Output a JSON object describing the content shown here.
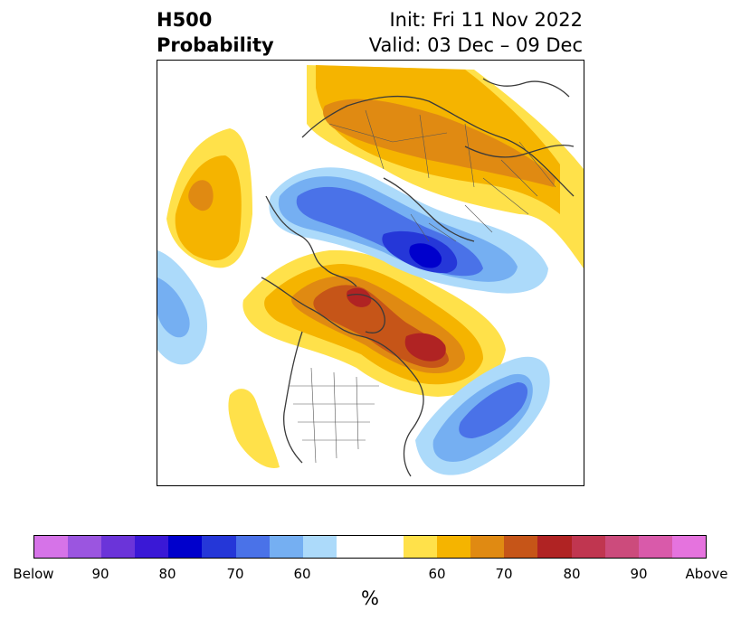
{
  "header": {
    "variable": "H500",
    "product": "Probability",
    "init": "Init: Fri 11 Nov 2022",
    "valid": "Valid: 03 Dec – 09 Dec"
  },
  "colorbar": {
    "unit": "%",
    "colors": [
      "#d673e8",
      "#9b55e0",
      "#6b34d9",
      "#3a18d6",
      "#0000cc",
      "#2537d8",
      "#4a72e8",
      "#75aff2",
      "#acdafa",
      "#ffffff",
      "#ffffff",
      "#ffe14a",
      "#f5b400",
      "#e08a12",
      "#c65518",
      "#b02323",
      "#c03650",
      "#cc4b7c",
      "#d95aaa",
      "#e573de"
    ],
    "labels": [
      "Below",
      "90",
      "80",
      "70",
      "60",
      "60",
      "70",
      "80",
      "90",
      "Above"
    ]
  },
  "legend_colors": {
    "below_strong": "#0000cc",
    "below": "#4a72e8",
    "below_light": "#acdafa",
    "above_light": "#ffe14a",
    "above": "#f5b400",
    "above_strong": "#b02323"
  }
}
